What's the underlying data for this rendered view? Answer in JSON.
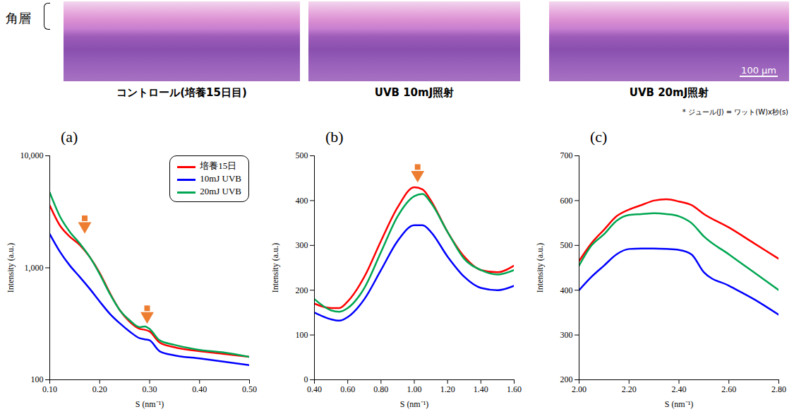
{
  "figure": {
    "stratum_label": "角層",
    "panels": [
      {
        "caption": "コントロール(培養15日目)"
      },
      {
        "caption": "UVB 10mJ照射"
      },
      {
        "caption": "UVB 20mJ照射",
        "scale_bar": "100 µm"
      }
    ],
    "footnote": "* ジュール(J) = ワット(W)x秒(s)"
  },
  "chart_data": [
    {
      "type": "line",
      "title": "(a)",
      "x_label": "S (nm⁻¹)",
      "y_label": "Intensity (a.u.)",
      "log": "y",
      "legend": "upper right",
      "x": [
        0.1,
        0.12,
        0.14,
        0.16,
        0.18,
        0.2,
        0.22,
        0.24,
        0.26,
        0.28,
        0.29,
        0.3,
        0.32,
        0.35,
        0.4,
        0.45,
        0.5
      ],
      "series": [
        {
          "name": "培養15日",
          "color": "#ff0000",
          "values": [
            3600,
            2400,
            1900,
            1600,
            1250,
            900,
            600,
            420,
            330,
            285,
            280,
            270,
            215,
            195,
            180,
            170,
            160
          ]
        },
        {
          "name": "10mJ UVB",
          "color": "#0000ff",
          "values": [
            2000,
            1400,
            1050,
            830,
            650,
            500,
            390,
            320,
            270,
            235,
            230,
            225,
            180,
            165,
            155,
            145,
            135
          ]
        },
        {
          "name": "20mJ UVB",
          "color": "#00a651",
          "values": [
            4700,
            2900,
            2100,
            1650,
            1250,
            880,
            590,
            420,
            340,
            295,
            300,
            285,
            225,
            205,
            185,
            175,
            160
          ]
        }
      ],
      "xlim": [
        0.1,
        0.5
      ],
      "xticks": [
        {
          "value": 0.1,
          "label": "0.10"
        },
        {
          "value": 0.2,
          "label": "0.20"
        },
        {
          "value": 0.3,
          "label": "0.30"
        },
        {
          "value": 0.4,
          "label": "0.40"
        },
        {
          "value": 0.5,
          "label": "0.50"
        }
      ],
      "ylim": [
        100,
        10000
      ],
      "yticks": [
        100,
        {
          "value": 1000,
          "label": "1,000"
        },
        {
          "value": 10000,
          "label": "10,000"
        }
      ],
      "arrows": [
        {
          "x": 0.17,
          "y": 2100
        },
        {
          "x": 0.295,
          "y": 330
        }
      ]
    },
    {
      "type": "line",
      "title": "(b)",
      "x_label": "S (nm⁻¹)",
      "y_label": "Intensity (a.u.)",
      "x": [
        0.4,
        0.5,
        0.55,
        0.6,
        0.7,
        0.8,
        0.9,
        1.0,
        1.05,
        1.1,
        1.2,
        1.3,
        1.4,
        1.5,
        1.6
      ],
      "series": [
        {
          "color": "#ff0000",
          "values": [
            170,
            160,
            160,
            175,
            230,
            310,
            385,
            430,
            425,
            400,
            330,
            275,
            245,
            240,
            255
          ]
        },
        {
          "color": "#0000ff",
          "values": [
            150,
            135,
            132,
            140,
            180,
            245,
            310,
            345,
            345,
            330,
            275,
            230,
            205,
            200,
            210
          ]
        },
        {
          "color": "#00a651",
          "values": [
            180,
            155,
            152,
            160,
            205,
            285,
            365,
            410,
            415,
            395,
            330,
            270,
            245,
            235,
            245
          ]
        }
      ],
      "xlim": [
        0.4,
        1.6
      ],
      "xticks": [
        {
          "value": 0.4,
          "label": "0.40"
        },
        {
          "value": 0.6,
          "label": "0.60"
        },
        {
          "value": 0.8,
          "label": "0.80"
        },
        {
          "value": 1.0,
          "label": "1.00"
        },
        {
          "value": 1.2,
          "label": "1.20"
        },
        {
          "value": 1.4,
          "label": "1.40"
        },
        {
          "value": 1.6,
          "label": "1.60"
        }
      ],
      "ylim": [
        0,
        500
      ],
      "yticks": [
        0,
        100,
        200,
        300,
        400,
        500
      ],
      "arrows": [
        {
          "x": 1.02,
          "y": 445
        }
      ]
    },
    {
      "type": "line",
      "title": "(c)",
      "x_label": "S (nm⁻¹)",
      "y_label": "Intensity (a.u.)",
      "x": [
        2.0,
        2.05,
        2.1,
        2.15,
        2.2,
        2.25,
        2.3,
        2.35,
        2.4,
        2.45,
        2.5,
        2.6,
        2.7,
        2.8
      ],
      "series": [
        {
          "color": "#ff0000",
          "values": [
            465,
            505,
            535,
            565,
            580,
            590,
            600,
            603,
            598,
            590,
            570,
            540,
            505,
            470
          ]
        },
        {
          "color": "#00a651",
          "values": [
            455,
            500,
            525,
            555,
            568,
            570,
            572,
            570,
            565,
            550,
            520,
            480,
            440,
            400
          ]
        },
        {
          "color": "#0000ff",
          "values": [
            400,
            430,
            455,
            480,
            492,
            493,
            493,
            492,
            490,
            480,
            440,
            410,
            380,
            345
          ]
        }
      ],
      "xlim": [
        2.0,
        2.8
      ],
      "xticks": [
        {
          "value": 2.0,
          "label": "2.00"
        },
        {
          "value": 2.2,
          "label": "2.20"
        },
        {
          "value": 2.4,
          "label": "2.40"
        },
        {
          "value": 2.6,
          "label": "2.60"
        },
        {
          "value": 2.8,
          "label": "2.80"
        }
      ],
      "ylim": [
        200,
        700
      ],
      "yticks": [
        200,
        300,
        400,
        500,
        600,
        700
      ]
    }
  ]
}
